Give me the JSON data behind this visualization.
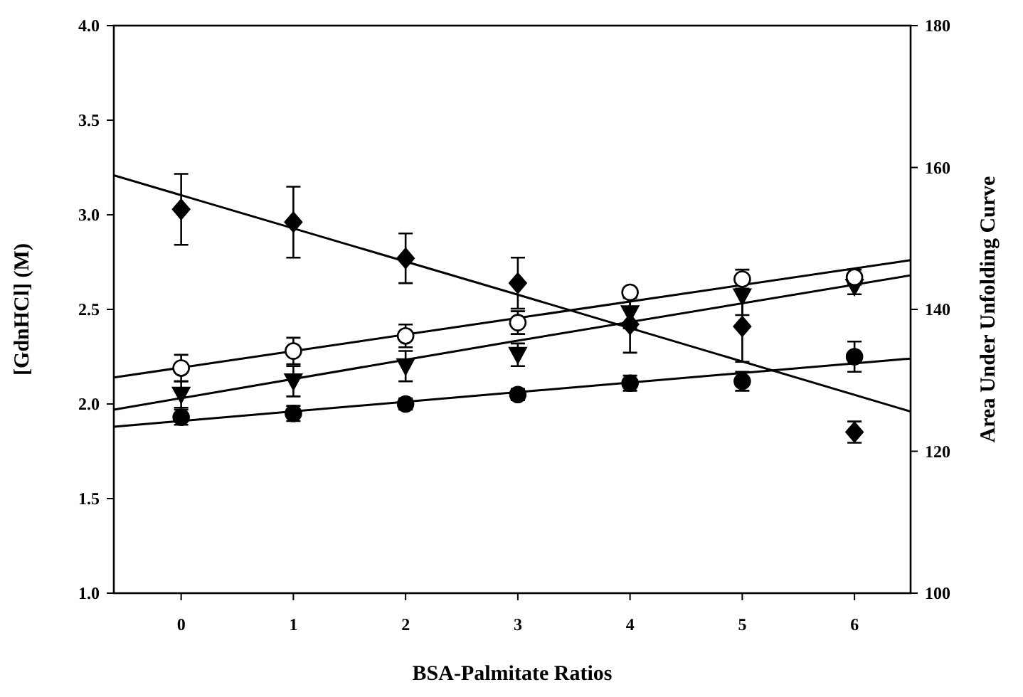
{
  "chart_data": {
    "type": "scatter",
    "xlabel": "BSA-Palmitate Ratios",
    "ylabel": "[GdnHCl] (M)",
    "y2label": "Area Under Unfolding Curve",
    "x": [
      0,
      1,
      2,
      3,
      4,
      5,
      6
    ],
    "xlim": [
      -0.6,
      6.5
    ],
    "xticks": [
      0,
      1,
      2,
      3,
      4,
      5,
      6
    ],
    "ylim": [
      1,
      4
    ],
    "yticks": [
      {
        "value": 1,
        "label": "1.0"
      },
      {
        "value": 1.5,
        "label": "1.5"
      },
      {
        "value": 2,
        "label": "2.0"
      },
      {
        "value": 2.5,
        "label": "2.5"
      },
      {
        "value": 3,
        "label": "3.0"
      },
      {
        "value": 3.5,
        "label": "3.5"
      },
      {
        "value": 4,
        "label": "4.0"
      }
    ],
    "y2lim": [
      100,
      180
    ],
    "y2ticks": [
      100,
      120,
      140,
      160,
      180
    ],
    "grid": false,
    "series": [
      {
        "marker": "circle",
        "color": "#ffffff",
        "values": [
          2.19,
          2.28,
          2.36,
          2.43,
          2.59,
          2.66,
          2.67
        ],
        "errors": [
          0.07,
          0.07,
          0.06,
          0.06,
          0.02,
          0.05,
          0.04
        ]
      },
      {
        "marker": "triangle",
        "color": "#000000",
        "values": [
          2.05,
          2.12,
          2.2,
          2.26,
          2.48,
          2.57,
          2.62
        ],
        "errors": [
          0.07,
          0.08,
          0.08,
          0.06,
          0.08,
          0.1,
          0.04
        ]
      },
      {
        "marker": "circle",
        "color": "#000000",
        "values": [
          1.93,
          1.95,
          2.0,
          2.05,
          2.11,
          2.12,
          2.25
        ],
        "errors": [
          0.04,
          0.04,
          0.03,
          0.03,
          0.04,
          0.05,
          0.08
        ]
      },
      {
        "marker": "diamond",
        "color": "#000000",
        "axis": "y2",
        "values": [
          154.1,
          152.3,
          147.2,
          143.7,
          137.9,
          137.6,
          122.7
        ],
        "errors": [
          5,
          5,
          3.5,
          3.6,
          4,
          5,
          1.5
        ]
      },
      {
        "type": "line",
        "marker": "none",
        "color": "#000000",
        "x": [
          -0.6,
          2.95,
          6.5
        ],
        "values": [
          2.14,
          2.45,
          2.76
        ]
      },
      {
        "type": "line",
        "marker": "none",
        "color": "#000000",
        "x": [
          -0.6,
          2.95,
          6.5
        ],
        "values": [
          1.97,
          2.33,
          2.68
        ]
      },
      {
        "type": "line",
        "marker": "none",
        "color": "#000000",
        "x": [
          -0.6,
          2.95,
          6.5
        ],
        "values": [
          1.88,
          2.06,
          2.24
        ]
      },
      {
        "type": "line",
        "marker": "none",
        "color": "#000000",
        "axis": "y2",
        "x": [
          -0.6,
          2.95,
          6.5
        ],
        "values": [
          158.9,
          142.3,
          125.6
        ]
      }
    ]
  }
}
